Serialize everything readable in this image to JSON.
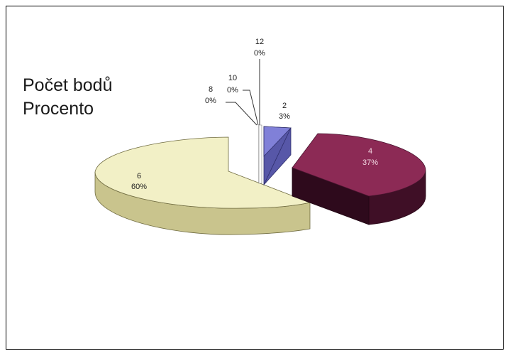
{
  "chart_data": {
    "type": "pie",
    "style": "3d-exploded",
    "legend": {
      "entries": [
        "Počet bodů",
        "Procento"
      ],
      "placement": "left"
    },
    "slices": [
      {
        "category": "2",
        "percent_label": "3%",
        "value": 3,
        "color": "#8080d8"
      },
      {
        "category": "4",
        "percent_label": "37%",
        "value": 37,
        "color": "#8c2a55"
      },
      {
        "category": "6",
        "percent_label": "60%",
        "value": 60,
        "color": "#f2f0c6"
      },
      {
        "category": "8",
        "percent_label": "0%",
        "value": 0,
        "color": "#ffffff"
      },
      {
        "category": "10",
        "percent_label": "0%",
        "value": 0,
        "color": "#ffffff"
      },
      {
        "category": "12",
        "percent_label": "0%",
        "value": 0,
        "color": "#ffffff"
      }
    ]
  }
}
